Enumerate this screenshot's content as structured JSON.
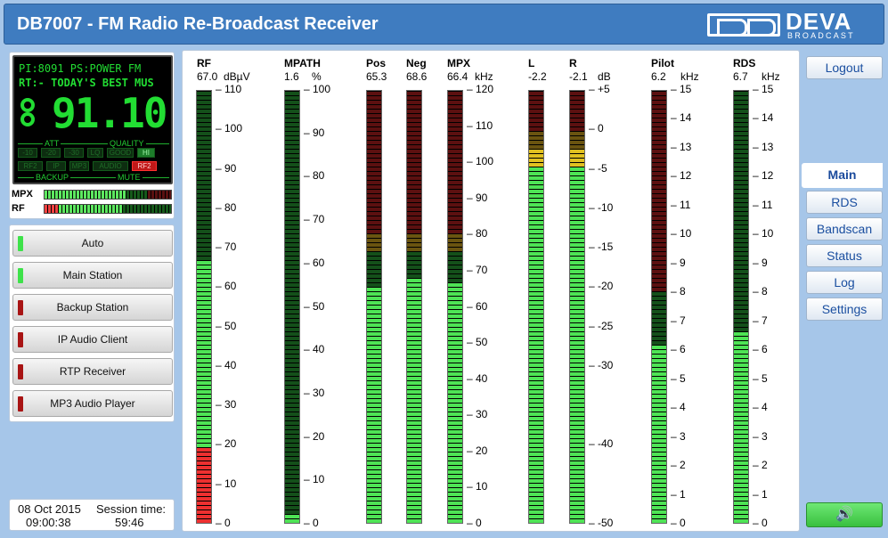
{
  "app": {
    "title": "DB7007 - FM Radio Re-Broadcast Receiver",
    "logo_name": "DEVA",
    "logo_sub": "BROADCAST"
  },
  "lcd": {
    "pi_ps": "PI:8091 PS:POWER FM",
    "rt": "RT:- TODAY'S BEST MUS",
    "frequency": "91.10",
    "att_label": "ATT",
    "quality_label": "QUALITY",
    "backup_label": "BACKUP",
    "mute_label": "MUTE",
    "row1": [
      "-10",
      "-20",
      "-30",
      "LQ",
      "GOOD",
      "HI"
    ],
    "row2": [
      "RF2",
      "IP",
      "MP3",
      "AUDIO",
      "RF2"
    ],
    "mpx_label": "MPX",
    "rf_label": "RF",
    "mpx_level": 0.62,
    "rf_level": 0.6
  },
  "modes": [
    {
      "label": "Auto",
      "status": "active",
      "color": "#3ee24a"
    },
    {
      "label": "Main Station",
      "status": "active",
      "color": "#3ee24a"
    },
    {
      "label": "Backup Station",
      "status": "inactive",
      "color": "#a81414"
    },
    {
      "label": "IP Audio Client",
      "status": "inactive",
      "color": "#a81414"
    },
    {
      "label": "RTP Receiver",
      "status": "inactive",
      "color": "#a81414"
    },
    {
      "label": "MP3 Audio Player",
      "status": "inactive",
      "color": "#a81414"
    }
  ],
  "clock": {
    "date": "08 Oct 2015",
    "time": "09:00:38",
    "session_label": "Session time:",
    "session": "59:46"
  },
  "meters": [
    {
      "name": "RF",
      "value": "67.0",
      "unit": "dBµV",
      "min": 0,
      "max": 110,
      "level": 67,
      "ticks": [
        "110",
        "100",
        "90",
        "80",
        "70",
        "60",
        "50",
        "40",
        "30",
        "20",
        "10",
        "0"
      ],
      "zones": "rf"
    },
    {
      "name": "MPATH",
      "value": "1.6",
      "unit": "%",
      "min": 0,
      "max": 100,
      "level": 1.6,
      "ticks": [
        "100",
        "90",
        "80",
        "70",
        "60",
        "50",
        "40",
        "30",
        "20",
        "10",
        "0"
      ],
      "zones": "green"
    },
    {
      "name": "Pos",
      "value": "65.3",
      "unit": "",
      "min": 0,
      "max": 120,
      "level": 65.3,
      "ticks": [],
      "zones": "mpx"
    },
    {
      "name": "Neg",
      "value": "68.6",
      "unit": "",
      "min": 0,
      "max": 120,
      "level": 68.6,
      "ticks": [],
      "zones": "mpx"
    },
    {
      "name": "MPX",
      "value": "66.4",
      "unit": "kHz",
      "min": 0,
      "max": 120,
      "level": 66.4,
      "ticks": [
        "120",
        "110",
        "100",
        "90",
        "80",
        "70",
        "60",
        "50",
        "40",
        "30",
        "20",
        "10",
        "0"
      ],
      "zones": "mpx"
    },
    {
      "name": "L",
      "value": "-2.2",
      "unit": "",
      "min": -50,
      "max": 5,
      "level": -2.2,
      "ticks": [],
      "zones": "audio"
    },
    {
      "name": "R",
      "value": "-2.1",
      "unit": "dB",
      "min": -50,
      "max": 5,
      "level": -2.1,
      "ticks": [
        "+5",
        "0",
        "-5",
        "-10",
        "-15",
        "-20",
        "-25",
        "-30",
        "-40",
        "-50"
      ],
      "zones": "audio"
    },
    {
      "name": "Pilot",
      "value": "6.2",
      "unit": "kHz",
      "min": 0,
      "max": 15,
      "level": 6.2,
      "ticks": [
        "15",
        "14",
        "13",
        "12",
        "11",
        "10",
        "9",
        "8",
        "7",
        "6",
        "5",
        "4",
        "3",
        "2",
        "1",
        "0"
      ],
      "zones": "pilot"
    },
    {
      "name": "RDS",
      "value": "6.7",
      "unit": "kHz",
      "min": 0,
      "max": 15,
      "level": 6.7,
      "ticks": [
        "15",
        "14",
        "13",
        "12",
        "11",
        "10",
        "9",
        "8",
        "7",
        "6",
        "5",
        "4",
        "3",
        "2",
        "1",
        "0"
      ],
      "zones": "green"
    }
  ],
  "nav": {
    "logout": "Logout",
    "items": [
      "Main",
      "RDS",
      "Bandscan",
      "Status",
      "Log",
      "Settings"
    ],
    "active": "Main",
    "audio_icon": "speaker-icon"
  }
}
